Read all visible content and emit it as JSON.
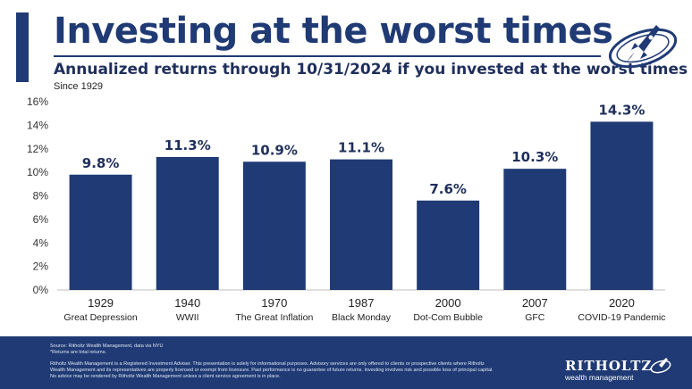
{
  "header": {
    "title": "Investing at the worst times",
    "subtitle": "Annualized returns through 10/31/2024 if you invested at the worst times",
    "since": "Since 1929"
  },
  "footer": {
    "source": "Source: Ritholtz Wealth Management, data via NYU",
    "note": "*Returns are total returns.",
    "disclaimer": "Ritholtz Wealth Management is a Registered Investment Adviser. This presentation is solely for informational purposes. Advisory services are only offered to clients or prospective clients where Ritholtz Wealth Management and its representatives are properly licensed or exempt from licensure. Past performance is no guarantee of future returns. Investing involves risk and possible loss of principal capital. No advice may be rendered by Ritholtz Wealth Management unless a client service agreement is in place.",
    "brand": "RITHOLTZ",
    "brand_sub": "wealth management"
  },
  "colors": {
    "bar": "#1f3a74",
    "accent": "#1f3a74",
    "text": "#1f2f5c",
    "footer_bg": "#1f3a74"
  },
  "icons": {
    "header_logo": "rocket-ring-logo",
    "footer_logo": "rocket-ring-logo"
  },
  "chart_data": {
    "type": "bar",
    "categories": [
      "1929",
      "1940",
      "1970",
      "1987",
      "2000",
      "2007",
      "2020"
    ],
    "sublabels": [
      "Great Depression",
      "WWII",
      "The Great Inflation",
      "Black Monday",
      "Dot-Com Bubble",
      "GFC",
      "COVID-19 Pandemic"
    ],
    "values": [
      9.8,
      11.3,
      10.9,
      11.1,
      7.6,
      10.3,
      14.3
    ],
    "value_labels": [
      "9.8%",
      "11.3%",
      "10.9%",
      "11.1%",
      "7.6%",
      "10.3%",
      "14.3%"
    ],
    "ylim": [
      0,
      16
    ],
    "yticks": [
      0,
      2,
      4,
      6,
      8,
      10,
      12,
      14,
      16
    ],
    "ytick_labels": [
      "0%",
      "2%",
      "4%",
      "6%",
      "8%",
      "10%",
      "12%",
      "14%",
      "16%"
    ],
    "grid": false
  }
}
